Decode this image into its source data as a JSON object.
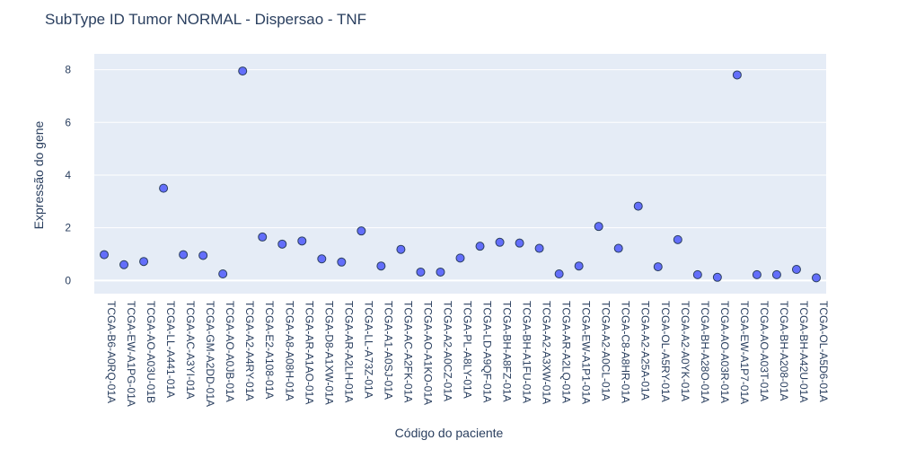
{
  "chart_data": {
    "type": "scatter",
    "title": "SubType ID Tumor NORMAL - Dispersao - TNF",
    "xlabel": "Código do paciente",
    "ylabel": "Expressão do gene",
    "ylim": [
      -0.5,
      8.6
    ],
    "yticks": [
      0,
      2,
      4,
      6,
      8
    ],
    "grid": true,
    "colors": {
      "plot_bg": "#e5ecf6",
      "grid": "#ffffff",
      "marker": "#636efa",
      "marker_border": "#2a3f5f",
      "text": "#2a3f5f"
    },
    "categories": [
      "TCGA-B6-A0RQ-01A",
      "TCGA-EW-A1PG-01A",
      "TCGA-AO-A03U-01B",
      "TCGA-LL-A441-01A",
      "TCGA-AC-A3YI-01A",
      "TCGA-GM-A2DD-01A",
      "TCGA-AO-A0JB-01A",
      "TCGA-A2-A4RY-01A",
      "TCGA-E2-A108-01A",
      "TCGA-A8-A08H-01A",
      "TCGA-AR-A1AO-01A",
      "TCGA-D8-A1XW-01A",
      "TCGA-AR-A2LH-01A",
      "TCGA-LL-A73Z-01A",
      "TCGA-A1-A0SJ-01A",
      "TCGA-AC-A2FK-01A",
      "TCGA-AO-A1KO-01A",
      "TCGA-A2-A0CZ-01A",
      "TCGA-PL-A8LY-01A",
      "TCGA-LD-A9QF-01A",
      "TCGA-BH-A8FZ-01A",
      "TCGA-BH-A1FU-01A",
      "TCGA-A2-A3XW-01A",
      "TCGA-AR-A2LQ-01A",
      "TCGA-EW-A1P1-01A",
      "TCGA-A2-A0CL-01A",
      "TCGA-C8-A8HR-01A",
      "TCGA-A2-A25A-01A",
      "TCGA-OL-A5RY-01A",
      "TCGA-A2-A0YK-01A",
      "TCGA-BH-A28O-01A",
      "TCGA-AO-A03R-01A",
      "TCGA-EW-A1P7-01A",
      "TCGA-AO-A03T-01A",
      "TCGA-BH-A208-01A",
      "TCGA-BH-A42U-01A",
      "TCGA-OL-A5D6-01A"
    ],
    "values": [
      0.98,
      0.6,
      0.72,
      3.5,
      0.98,
      0.95,
      0.25,
      7.95,
      1.65,
      1.38,
      1.5,
      0.82,
      0.7,
      1.88,
      0.55,
      1.18,
      0.32,
      0.32,
      0.85,
      1.3,
      1.45,
      1.42,
      1.22,
      0.25,
      0.55,
      2.05,
      1.22,
      2.82,
      0.52,
      1.55,
      0.22,
      0.12,
      7.8,
      0.22,
      0.22,
      0.42,
      0.1
    ]
  }
}
